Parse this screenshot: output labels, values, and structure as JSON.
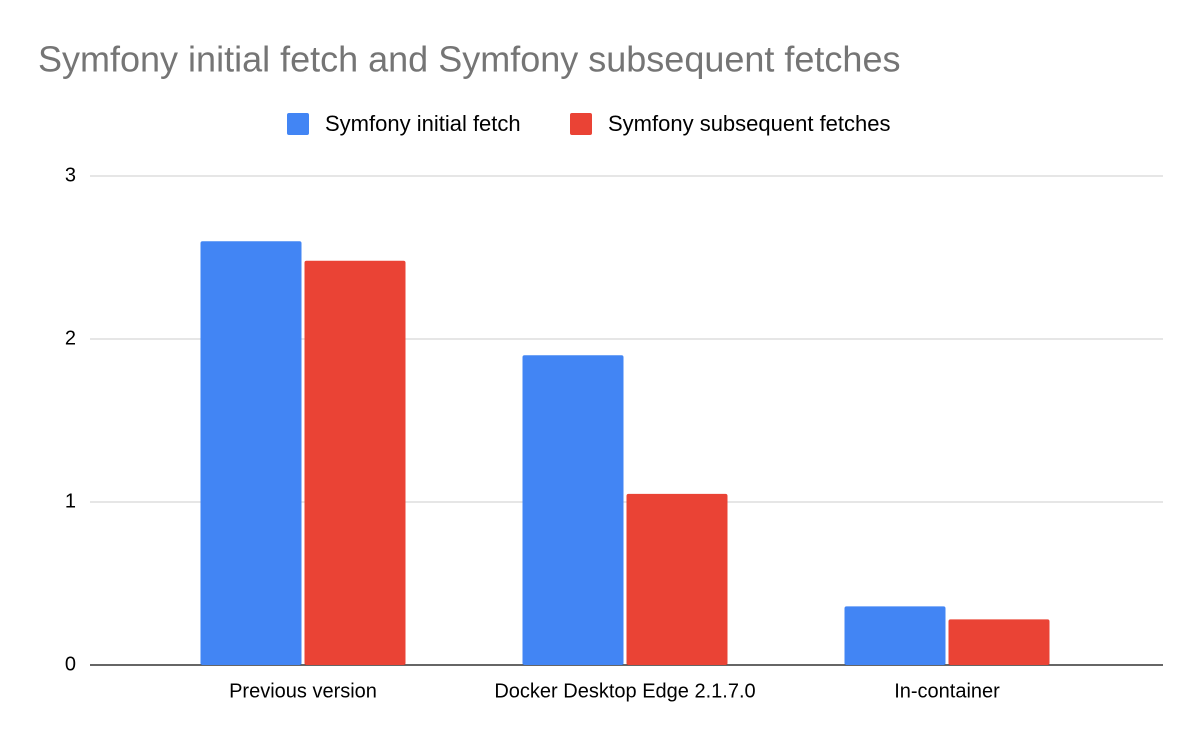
{
  "chart_data": {
    "type": "bar",
    "title": "Symfony initial fetch and Symfony subsequent fetches",
    "categories": [
      "Previous version",
      "Docker Desktop Edge 2.1.7.0",
      "In-container"
    ],
    "series": [
      {
        "name": "Symfony initial fetch",
        "color": "#4285f4",
        "values": [
          2.6,
          1.9,
          0.36
        ]
      },
      {
        "name": "Symfony subsequent fetches",
        "color": "#ea4335",
        "values": [
          2.48,
          1.05,
          0.28
        ]
      }
    ],
    "ylim": [
      0,
      3
    ],
    "yticks": [
      0,
      1,
      2,
      3
    ],
    "grid": true,
    "legend": "top"
  }
}
